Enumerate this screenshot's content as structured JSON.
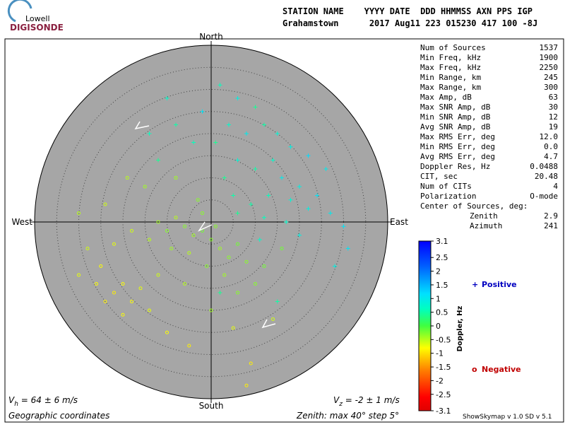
{
  "logo": {
    "top": "Lowell",
    "bottom": "DIGISONDE"
  },
  "header": {
    "line1": "STATION NAME    YYYY DATE  DDD HHMMSS AXN PPS IGP",
    "line2": "Grahamstown      2017 Aug11 223 015230 417 100 -8J"
  },
  "stats": [
    [
      "Num of Sources",
      "1537"
    ],
    [
      "Min Freq, kHz",
      "1900"
    ],
    [
      "Max Freq, kHz",
      "2250"
    ],
    [
      "Min Range, km",
      "245"
    ],
    [
      "Max Range, km",
      "300"
    ],
    [
      "Max Amp, dB",
      "63"
    ],
    [
      "Max SNR Amp, dB",
      "30"
    ],
    [
      "Min SNR Amp, dB",
      "12"
    ],
    [
      "Avg SNR Amp, dB",
      "19"
    ],
    [
      "Max RMS Err, deg",
      "12.0"
    ],
    [
      "Min RMS Err, deg",
      "0.0"
    ],
    [
      "Avg RMS Err, deg",
      "4.7"
    ],
    [
      "Doppler Res, Hz",
      "0.0488"
    ],
    [
      "CIT, sec",
      "20.48"
    ],
    [
      "Num of CITs",
      "4"
    ],
    [
      "Polarization",
      "O-mode"
    ]
  ],
  "center": {
    "title": "Center of Sources, deg:",
    "zenith_label": "Zenith",
    "zenith": "2.9",
    "azimuth_label": "Azimuth",
    "azimuth": "241"
  },
  "footer": {
    "vh_symbol": "V",
    "vh_sub": "h",
    "vh_text": " = 64 ± 6 m/s",
    "vz_symbol": "V",
    "vz_sub": "z",
    "vz_text": " = -2 ± 1 m/s",
    "coords": "Geographic coordinates",
    "zenith": "Zenith: max 40°  step 5°",
    "version": "ShowSkymap v 1.0   SD v 5.1"
  },
  "chart_data": {
    "type": "polar-scatter",
    "directions": {
      "north": "North",
      "south": "South",
      "east": "East",
      "west": "West"
    },
    "rlim": [
      0,
      40
    ],
    "rticks": [
      5,
      10,
      15,
      20,
      25,
      30,
      35
    ],
    "colorbar": {
      "label": "Doppler, Hz",
      "lim": [
        -3.1,
        3.1
      ],
      "ticks": [
        3.1,
        2.5,
        2,
        1.5,
        1,
        0.5,
        0,
        -0.5,
        -1,
        -1.5,
        -2,
        -2.5,
        -3.1
      ]
    },
    "series": [
      {
        "name": "Positive",
        "symbol": "+",
        "color": "#0000c0",
        "x": [
          2,
          6,
          10,
          -2,
          4,
          12,
          15,
          8,
          1,
          -4,
          18,
          22,
          14,
          10,
          6,
          3,
          16,
          20,
          24,
          18,
          13,
          9,
          22,
          27,
          30,
          17,
          12,
          6,
          20,
          -8,
          -14,
          -12,
          26,
          31,
          15,
          -10,
          2,
          28,
          5,
          11
        ],
        "values": [
          31,
          28,
          26,
          25,
          22,
          22,
          20,
          20,
          18,
          18,
          17,
          15,
          14,
          12,
          14,
          10,
          10,
          8,
          6,
          5,
          6,
          4,
          3,
          2,
          -1,
          0,
          1,
          2,
          -3,
          22,
          20,
          14,
          12,
          -6,
          -18,
          28,
          -16,
          -10,
          6,
          -4
        ],
        "doppler": [
          0.6,
          0.9,
          0.4,
          1.1,
          0.7,
          0.5,
          0.8,
          1.0,
          0.4,
          0.6,
          0.9,
          1.2,
          0.7,
          0.5,
          0.8,
          0.4,
          1.0,
          0.9,
          1.1,
          0.8,
          0.6,
          0.5,
          0.9,
          1.0,
          1.1,
          0.7,
          0.6,
          0.4,
          0.9,
          0.5,
          0.6,
          0.4,
          1.0,
          1.1,
          0.5,
          0.7,
          0.4,
          0.9,
          0.5,
          0.7
        ]
      },
      {
        "name": "Negative",
        "symbol": "o",
        "color": "#c00000",
        "x": [
          -12,
          -10,
          -8,
          -6,
          -4,
          -2,
          0,
          2,
          4,
          6,
          8,
          3,
          -1,
          -5,
          -9,
          -14,
          -18,
          -22,
          -25,
          -20,
          -22,
          -18,
          -16,
          -24,
          -20,
          -14,
          -26,
          -28,
          -30,
          -15,
          -8,
          -3,
          10,
          6,
          12,
          -6,
          -10,
          -5,
          9,
          8,
          14,
          -30,
          -12,
          0,
          -24,
          -19,
          5,
          16,
          -2,
          1
        ],
        "values": [
          0,
          -2,
          1,
          -1,
          -3,
          -2,
          -4,
          -6,
          -8,
          -5,
          -9,
          -12,
          -10,
          -7,
          -6,
          -4,
          -2,
          -5,
          -10,
          -14,
          -16,
          -18,
          -15,
          -18,
          -21,
          -20,
          -14,
          -6,
          2,
          8,
          10,
          5,
          -14,
          -16,
          -10,
          -14,
          -25,
          -28,
          -32,
          -37,
          -22,
          -12,
          -12,
          -20,
          4,
          10,
          -24,
          -6,
          2,
          -1
        ],
        "doppler": [
          -0.4,
          -0.3,
          -0.5,
          -0.3,
          -0.4,
          -0.2,
          -0.3,
          -0.4,
          -0.3,
          -0.2,
          -0.3,
          -0.4,
          -0.3,
          -0.5,
          -0.4,
          -0.5,
          -0.6,
          -0.7,
          -0.8,
          -0.8,
          -0.9,
          -0.8,
          -0.7,
          -0.9,
          -0.8,
          -0.7,
          -0.8,
          -0.6,
          -0.5,
          -0.4,
          -0.4,
          -0.3,
          -0.3,
          -0.3,
          -0.2,
          -0.5,
          -0.8,
          -0.9,
          -0.9,
          -0.9,
          -0.6,
          -0.7,
          -0.6,
          -0.4,
          -0.6,
          -0.5,
          -0.7,
          -0.2,
          -0.3,
          -0.3
        ]
      }
    ]
  }
}
